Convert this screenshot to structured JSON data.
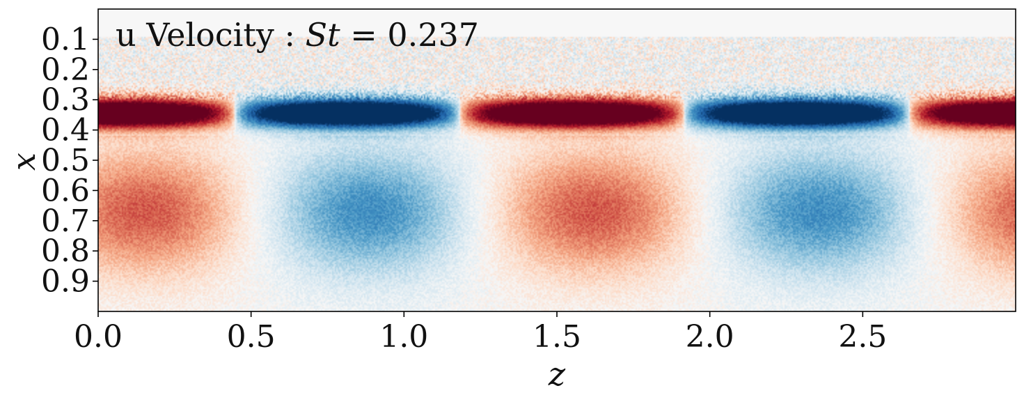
{
  "chart_data": {
    "type": "heatmap",
    "title": {
      "prefix": "u Velocity : ",
      "symbol": "St",
      "suffix": " = 0.237"
    },
    "xlabel": "z",
    "ylabel": "x",
    "xlim": [
      0.0,
      3.0
    ],
    "ylim": [
      1.0,
      0.0
    ],
    "y_inverted": true,
    "x_ticks": [
      0.0,
      0.5,
      1.0,
      1.5,
      2.0,
      2.5
    ],
    "x_tick_labels": [
      "0.0",
      "0.5",
      "1.0",
      "1.5",
      "2.0",
      "2.5"
    ],
    "y_ticks": [
      0.1,
      0.2,
      0.3,
      0.4,
      0.5,
      0.6,
      0.7,
      0.8,
      0.9
    ],
    "y_tick_labels": [
      "0.1",
      "0.2",
      "0.3",
      "0.4",
      "0.5",
      "0.6",
      "0.7",
      "0.8",
      "0.9"
    ],
    "colormap": "RdBu_r",
    "colors": {
      "positive": "#67001f",
      "negative": "#053061",
      "neutral": "#f7f7f7"
    },
    "grid": false,
    "field": {
      "spanwise_wavelength": 1.47,
      "phase_zero_at_z": 0.1,
      "upper_band": {
        "x_center": 0.345,
        "x_halfwidth": 0.06,
        "peak_value": 1.0,
        "phase_lag_z": -0.02
      },
      "lower_band": {
        "x_center": 0.67,
        "x_halfwidth": 0.2,
        "peak_value": 0.62,
        "phase_lag_z": 0.05
      },
      "noise_region": {
        "x_from": 0.09,
        "x_to": 0.3
      }
    }
  }
}
